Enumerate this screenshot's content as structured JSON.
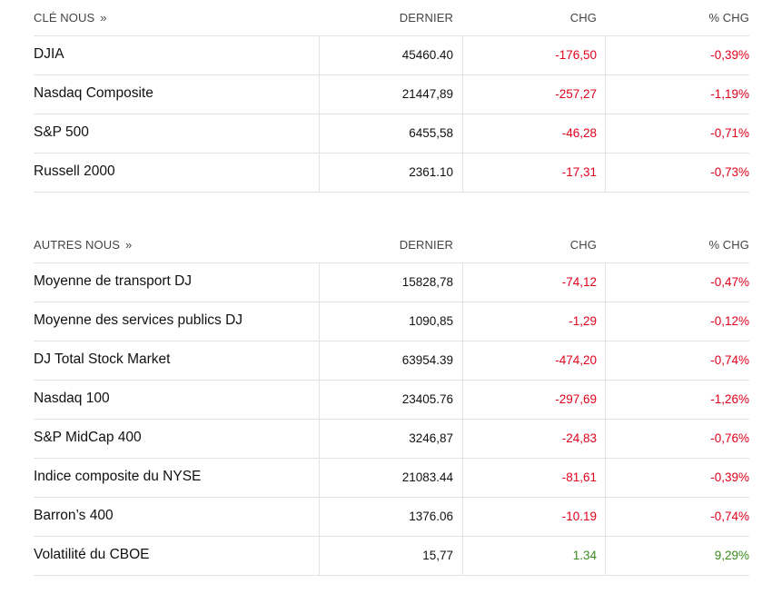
{
  "key_us": {
    "title": "CLÉ NOUS",
    "chevron": "»",
    "col_last": "DERNIER",
    "col_chg": "CHG",
    "col_pct": "% CHG",
    "rows": [
      {
        "name": "DJIA",
        "last": "45460.40",
        "chg": "-176,50",
        "pct": "-0,39%",
        "direction": "down"
      },
      {
        "name": "Nasdaq Composite",
        "last": "21447,89",
        "chg": "-257,27",
        "pct": "-1,19%",
        "direction": "down"
      },
      {
        "name": "S&P 500",
        "last": "6455,58",
        "chg": "-46,28",
        "pct": "-0,71%",
        "direction": "down"
      },
      {
        "name": "Russell 2000",
        "last": "2361.10",
        "chg": "-17,31",
        "pct": "-0,73%",
        "direction": "down"
      }
    ]
  },
  "other_us": {
    "title": "AUTRES NOUS",
    "chevron": "»",
    "col_last": "DERNIER",
    "col_chg": "CHG",
    "col_pct": "% CHG",
    "rows": [
      {
        "name": "Moyenne de transport DJ",
        "last": "15828,78",
        "chg": "-74,12",
        "pct": "-0,47%",
        "direction": "down"
      },
      {
        "name": "Moyenne des services publics DJ",
        "last": "1090,85",
        "chg": "-1,29",
        "pct": "-0,12%",
        "direction": "down"
      },
      {
        "name": "DJ Total Stock Market",
        "last": "63954.39",
        "chg": "-474,20",
        "pct": "-0,74%",
        "direction": "down"
      },
      {
        "name": "Nasdaq 100",
        "last": "23405.76",
        "chg": "-297,69",
        "pct": "-1,26%",
        "direction": "down"
      },
      {
        "name": "S&P MidCap 400",
        "last": "3246,87",
        "chg": "-24,83",
        "pct": "-0,76%",
        "direction": "down"
      },
      {
        "name": "Indice composite du NYSE",
        "last": "21083.44",
        "chg": "-81,61",
        "pct": "-0,39%",
        "direction": "down"
      },
      {
        "name": "Barron’s 400",
        "last": "1376.06",
        "chg": "-10.19",
        "pct": "-0,74%",
        "direction": "down"
      },
      {
        "name": "Volatilité du CBOE",
        "last": "15,77",
        "chg": "1.34",
        "pct": "9,29%",
        "direction": "up"
      }
    ]
  },
  "colors": {
    "negative": "#e0001b",
    "positive": "#3a8a1e",
    "divider": "#e3e3e3"
  }
}
